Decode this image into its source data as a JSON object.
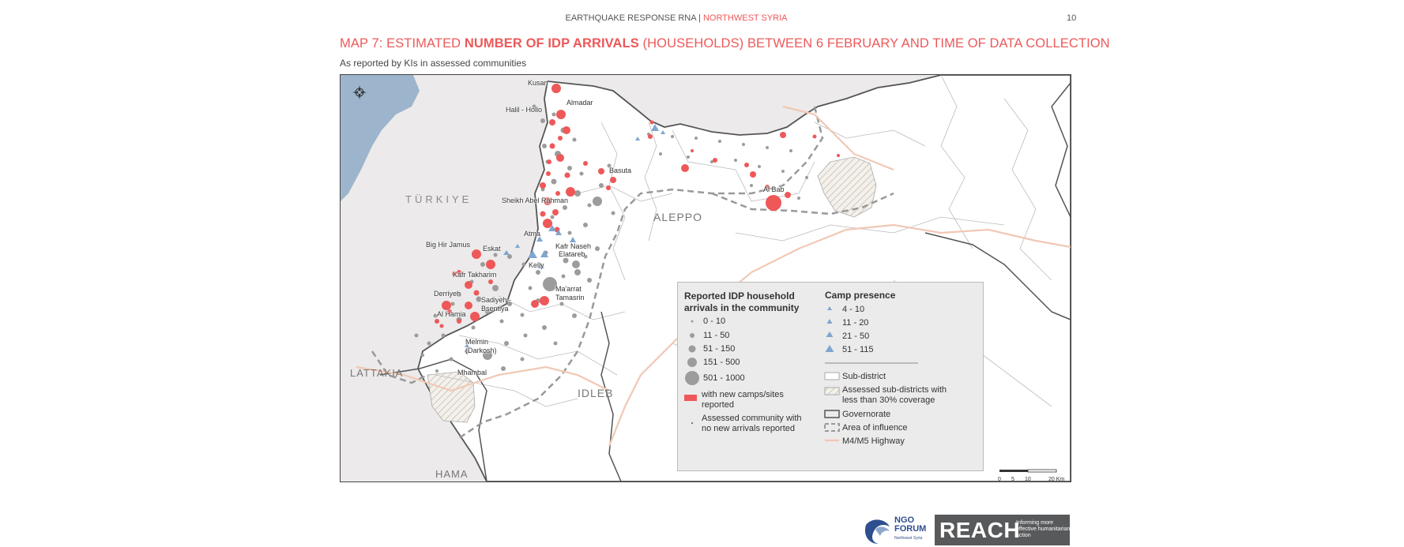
{
  "header": {
    "report": "EARTHQUAKE RESPONSE RNA |",
    "region": "NORTHWEST SYRIA",
    "page_number": "10"
  },
  "title": {
    "part1": "MAP 7: ESTIMATED ",
    "bold": "NUMBER OF IDP ARRIVALS",
    "part2": " (HOUSEHOLDS) BETWEEN 6 FEBRUARY AND TIME OF DATA COLLECTION"
  },
  "subtitle": "As reported by KIs in assessed communities",
  "map": {
    "regions": {
      "turkiye": "TÜRKIYE",
      "aleppo": "ALEPPO",
      "lattakia": "LATTAKIA",
      "idleb": "IDLEB",
      "hama": "HAMA"
    },
    "places": [
      "Kusan",
      "Almadar",
      "Halil - Hollo",
      "Basuta",
      "Sheikh Abel Rahman",
      "Al Bab",
      "Atma",
      "Kafr Naseh",
      "Elatareb",
      "Big Hir Jamus",
      "Eskat",
      "Kelly",
      "Kafr Takharim",
      "Ma'arrat Tamasrin",
      "Derriyeh",
      "Sadiyeh - Bsentiya",
      "Al Hamia",
      "Melmin (Darkosh)",
      "Mhambal"
    ],
    "colors": {
      "water": "#9db5cc",
      "community": "#9c9c9c",
      "new_camps": "#ee5859",
      "camp": "#7ea6cf",
      "highway": "#f1c8b4"
    }
  },
  "legend": {
    "arrivals_title": "Reported IDP household arrivals in the community",
    "arrival_classes": [
      "0 - 10",
      "11 - 50",
      "51 - 150",
      "151 - 500",
      "501 - 1000"
    ],
    "new_camps": "with new camps/sites reported",
    "no_arrivals": "Assessed community with no new arrivals reported",
    "camp_title": "Camp presence",
    "camp_classes": [
      "4 - 10",
      "11 - 20",
      "21 - 50",
      "51 - 115"
    ],
    "subdistrict": "Sub-district",
    "low_coverage": "Assessed sub-districts with less than 30% coverage",
    "governorate": "Governorate",
    "influence": "Area of influence",
    "highway": "M4/M5 Highway"
  },
  "scale_bar": {
    "labels": [
      "0",
      "5",
      "10",
      "20 Km"
    ]
  },
  "footer": {
    "ngo_name": "NGO FORUM",
    "ngo_sub": "Northwest Syria",
    "reach_name": "REACH",
    "reach_tagline": "Informing more effective humanitarian action"
  }
}
